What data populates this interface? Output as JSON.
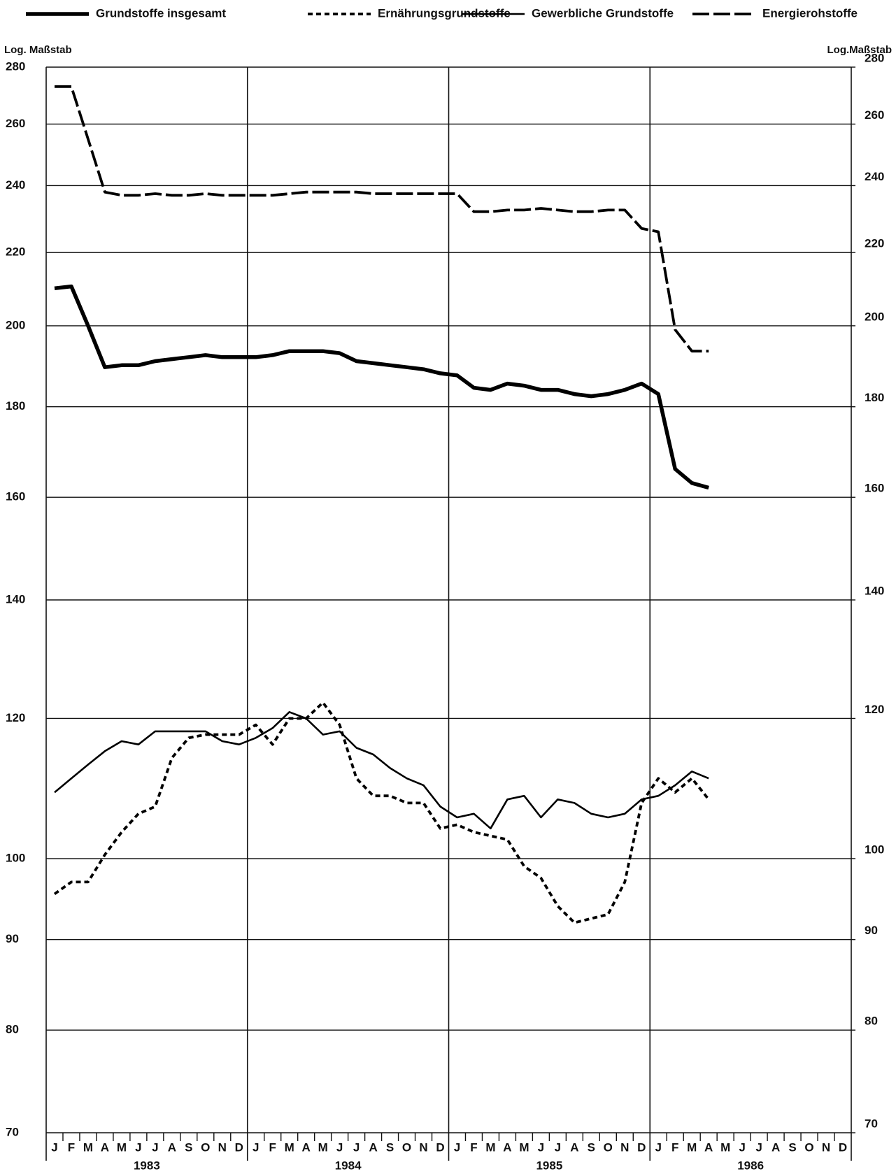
{
  "chart_data": {
    "type": "line",
    "log_scale": true,
    "grid": true,
    "ylabel": "Log. Maßstab",
    "y2label": "Log.Maßstab",
    "categories": [
      "J",
      "F",
      "M",
      "A",
      "M",
      "J",
      "J",
      "A",
      "S",
      "O",
      "N",
      "D",
      "J",
      "F",
      "M",
      "A",
      "M",
      "J",
      "J",
      "A",
      "S",
      "O",
      "N",
      "D",
      "J",
      "F",
      "M",
      "A",
      "M",
      "J",
      "J",
      "A",
      "S",
      "O",
      "N",
      "D",
      "J",
      "F",
      "M",
      "A",
      "M",
      "J",
      "J",
      "A",
      "S",
      "O",
      "N",
      "D"
    ],
    "years": [
      "1983",
      "1984",
      "1985",
      "1986"
    ],
    "ylim": [
      70,
      280
    ],
    "yticks": [
      70,
      80,
      90,
      100,
      120,
      140,
      160,
      180,
      200,
      220,
      240,
      260,
      280
    ],
    "y2lim": [
      70,
      280
    ],
    "y2ticks": [
      70,
      80,
      90,
      100,
      120,
      140,
      160,
      180,
      200,
      220,
      240,
      260,
      280
    ],
    "series": [
      {
        "name": "Grundstoffe insgesamt",
        "color": "#000",
        "line_style": "thick",
        "values": [
          210,
          210.5,
          200,
          189.5,
          190,
          190,
          191,
          191.5,
          192,
          192.5,
          192,
          192,
          192,
          192.5,
          193.5,
          193.5,
          193.5,
          193,
          191,
          190.5,
          190,
          189.5,
          189,
          188,
          187.5,
          184.5,
          184,
          185.5,
          185,
          184,
          184,
          183,
          182.5,
          183,
          184,
          185.5,
          183,
          166,
          163,
          162,
          null,
          null,
          null,
          null,
          null,
          null,
          null,
          null
        ]
      },
      {
        "name": "Ernährungsgrundstoffe",
        "color": "#000",
        "line_style": "short-dash",
        "values": [
          95.5,
          97,
          97,
          100.5,
          103.5,
          106,
          107,
          114,
          117,
          117.5,
          117.5,
          117.5,
          119,
          116,
          120,
          120,
          122.5,
          119,
          111,
          108.5,
          108.5,
          107.5,
          107.5,
          104,
          104.5,
          103.5,
          103,
          102.5,
          99,
          97.5,
          94,
          92,
          92.5,
          93,
          97,
          107.5,
          111,
          109,
          111,
          108,
          null,
          null,
          null,
          null,
          null,
          null,
          null,
          null
        ]
      },
      {
        "name": "Gewerbliche Grundstoffe",
        "color": "#000",
        "line_style": "thin",
        "values": [
          109,
          111,
          113,
          115,
          116.5,
          116,
          118,
          118,
          118,
          118,
          116.5,
          116,
          117,
          118.5,
          121,
          120,
          117.5,
          118,
          115.5,
          114.5,
          112.5,
          111,
          110,
          107,
          105.5,
          106,
          104,
          108,
          108.5,
          105.5,
          108,
          107.5,
          106,
          105.5,
          106,
          108,
          108.5,
          110,
          112,
          111,
          null,
          null,
          null,
          null,
          null,
          null,
          null,
          null
        ]
      },
      {
        "name": "Energierohstoffe",
        "color": "#000",
        "line_style": "long-dash",
        "values": [
          273,
          273,
          255,
          238,
          237,
          237,
          237.5,
          237,
          237,
          237.5,
          237,
          237,
          237,
          237,
          237.5,
          238,
          238,
          238,
          238,
          237.5,
          237.5,
          237.5,
          237.5,
          237.5,
          237.5,
          232,
          232,
          232.5,
          232.5,
          233,
          232.5,
          232,
          232,
          232.5,
          232.5,
          227,
          226,
          199,
          193.5,
          193.5,
          null,
          null,
          null,
          null,
          null,
          null,
          null,
          null
        ]
      }
    ]
  }
}
